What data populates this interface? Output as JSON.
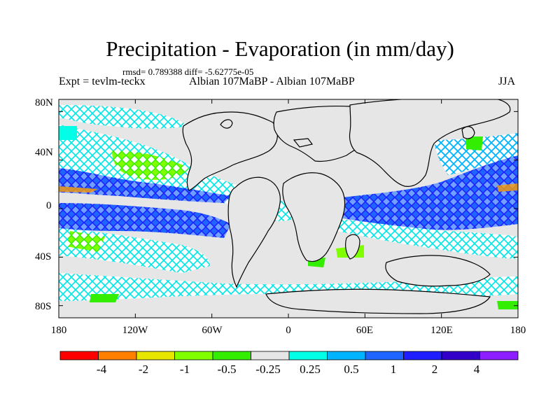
{
  "title": "Precipitation - Evaporation (in mm/day)",
  "stats_line": "rmsd= 0.789388 diff= -5.62775e-05",
  "experiment_label": "Expt = tevlm-teckx",
  "comparison_label": "Albian   107MaBP - Albian   107MaBP",
  "season": "JJA",
  "map": {
    "projection": "cylindrical equidistant",
    "lon_range": [
      -180,
      180
    ],
    "lat_range": [
      -90,
      90
    ],
    "lat_ticks": [
      "80N",
      "40N",
      "0",
      "40S",
      "80S"
    ],
    "lon_ticks": [
      "180",
      "120W",
      "60W",
      "0",
      "60E",
      "120E",
      "180"
    ],
    "land_color": "#e6e6e6",
    "coastline_color": "#000000"
  },
  "colorbar": {
    "colors": [
      "#ff0000",
      "#ff8000",
      "#e6e600",
      "#80ff00",
      "#33ee00",
      "#e6e6e6",
      "#00ffe6",
      "#00b4ff",
      "#1e64ff",
      "#1e1eff",
      "#3200c8",
      "#8c1eff"
    ],
    "labels": [
      "-4",
      "-2",
      "-1",
      "-0.5",
      "-0.25",
      "0.25",
      "0.5",
      "1",
      "2",
      "4"
    ]
  }
}
